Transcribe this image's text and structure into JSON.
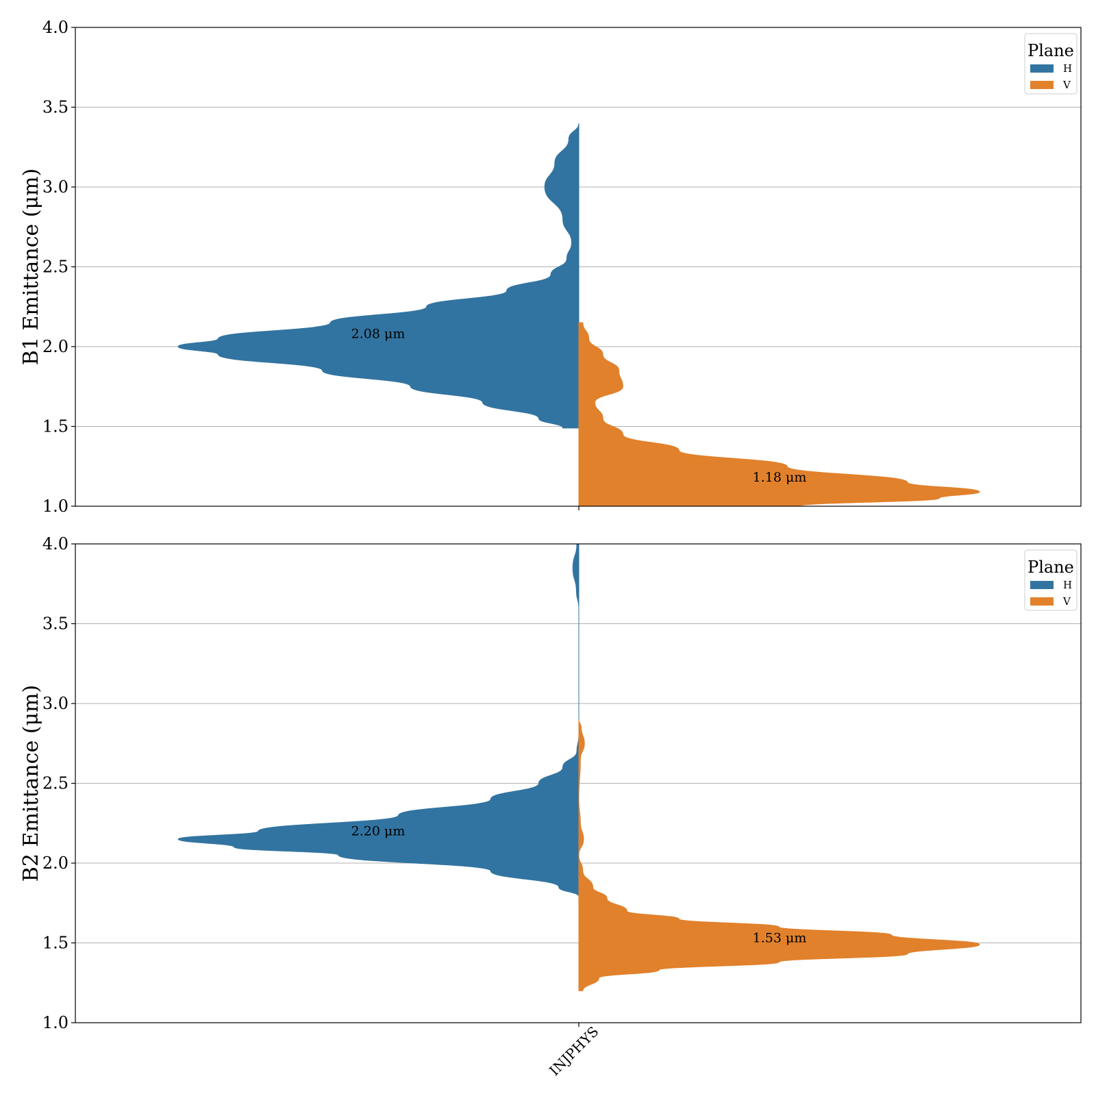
{
  "chart_data": [
    {
      "type": "violin",
      "ylabel": "B1 Emittance (μm)",
      "ylim": [
        1.0,
        4.0
      ],
      "yticks": [
        "1.0",
        "1.5",
        "2.0",
        "2.5",
        "3.0",
        "3.5",
        "4.0"
      ],
      "categories": [
        "INJPHYS"
      ],
      "grid": "y",
      "legend": {
        "title": "Plane",
        "placement": "top-right",
        "entries": [
          "H",
          "V"
        ]
      },
      "series": [
        {
          "name": "H",
          "side": "left",
          "color": "#3274a1",
          "median_label": "2.08 μm",
          "median": 2.08,
          "range": [
            1.49,
            3.4
          ],
          "density_profile": [
            [
              1.49,
              0.04
            ],
            [
              1.55,
              0.1
            ],
            [
              1.65,
              0.24
            ],
            [
              1.75,
              0.42
            ],
            [
              1.85,
              0.64
            ],
            [
              1.95,
              0.9
            ],
            [
              2.0,
              1.0
            ],
            [
              2.05,
              0.9
            ],
            [
              2.15,
              0.62
            ],
            [
              2.25,
              0.38
            ],
            [
              2.35,
              0.18
            ],
            [
              2.45,
              0.07
            ],
            [
              2.55,
              0.03
            ],
            [
              2.65,
              0.018
            ],
            [
              2.8,
              0.04
            ],
            [
              3.0,
              0.085
            ],
            [
              3.15,
              0.06
            ],
            [
              3.3,
              0.025
            ],
            [
              3.4,
              0.0
            ]
          ]
        },
        {
          "name": "V",
          "side": "right",
          "color": "#e1812c",
          "median_label": "1.18 μm",
          "median": 1.18,
          "range": [
            1.0,
            2.15
          ],
          "density_profile": [
            [
              1.0,
              0.55
            ],
            [
              1.05,
              0.9
            ],
            [
              1.09,
              1.0
            ],
            [
              1.15,
              0.82
            ],
            [
              1.25,
              0.52
            ],
            [
              1.35,
              0.25
            ],
            [
              1.45,
              0.11
            ],
            [
              1.55,
              0.06
            ],
            [
              1.65,
              0.04
            ],
            [
              1.75,
              0.11
            ],
            [
              1.85,
              0.1
            ],
            [
              1.95,
              0.06
            ],
            [
              2.05,
              0.025
            ],
            [
              2.15,
              0.01
            ]
          ]
        }
      ]
    },
    {
      "type": "violin",
      "ylabel": "B2 Emittance (μm)",
      "ylim": [
        1.0,
        4.0
      ],
      "yticks": [
        "1.0",
        "1.5",
        "2.0",
        "2.5",
        "3.0",
        "3.5",
        "4.0"
      ],
      "categories": [
        "INJPHYS"
      ],
      "grid": "y",
      "legend": {
        "title": "Plane",
        "placement": "top-right",
        "entries": [
          "H",
          "V"
        ]
      },
      "series": [
        {
          "name": "H",
          "side": "left",
          "color": "#3274a1",
          "median_label": "2.20 μm",
          "median": 2.2,
          "range": [
            1.79,
            4.0
          ],
          "density_profile": [
            [
              1.79,
              0.0
            ],
            [
              1.85,
              0.05
            ],
            [
              1.95,
              0.22
            ],
            [
              2.05,
              0.6
            ],
            [
              2.1,
              0.86
            ],
            [
              2.15,
              1.0
            ],
            [
              2.2,
              0.8
            ],
            [
              2.3,
              0.45
            ],
            [
              2.4,
              0.22
            ],
            [
              2.5,
              0.1
            ],
            [
              2.6,
              0.04
            ],
            [
              2.7,
              0.005
            ],
            [
              2.8,
              0.0
            ],
            [
              3.6,
              0.0
            ],
            [
              3.7,
              0.006
            ],
            [
              3.85,
              0.015
            ],
            [
              4.0,
              0.005
            ]
          ]
        },
        {
          "name": "V",
          "side": "right",
          "color": "#e1812c",
          "median_label": "1.53 μm",
          "median": 1.53,
          "range": [
            1.2,
            2.9
          ],
          "density_profile": [
            [
              1.2,
              0.01
            ],
            [
              1.28,
              0.05
            ],
            [
              1.33,
              0.2
            ],
            [
              1.38,
              0.5
            ],
            [
              1.43,
              0.82
            ],
            [
              1.49,
              1.0
            ],
            [
              1.55,
              0.78
            ],
            [
              1.6,
              0.5
            ],
            [
              1.65,
              0.25
            ],
            [
              1.7,
              0.12
            ],
            [
              1.78,
              0.07
            ],
            [
              1.85,
              0.035
            ],
            [
              1.95,
              0.01
            ],
            [
              2.05,
              0.0
            ],
            [
              2.15,
              0.012
            ],
            [
              2.25,
              0.004
            ],
            [
              2.4,
              0.0
            ],
            [
              2.65,
              0.004
            ],
            [
              2.75,
              0.014
            ],
            [
              2.85,
              0.006
            ],
            [
              2.9,
              0.0
            ]
          ]
        }
      ]
    }
  ]
}
